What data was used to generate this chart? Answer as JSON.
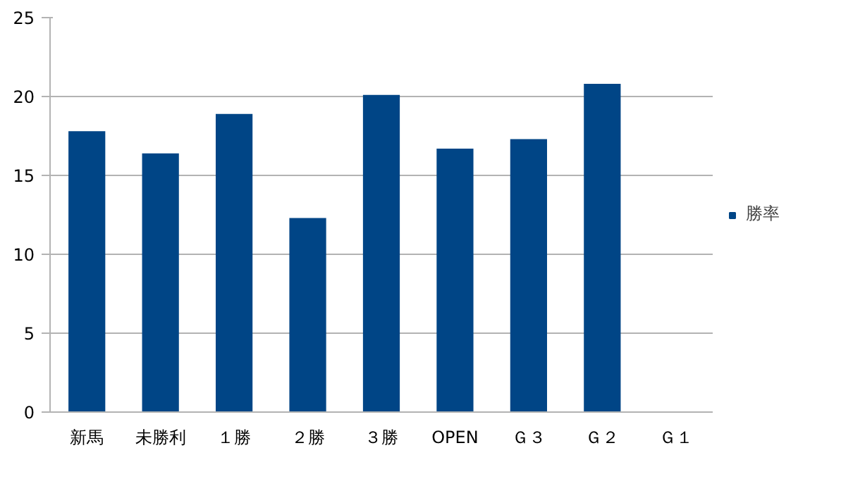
{
  "chart_data": {
    "type": "bar",
    "categories": [
      "新馬",
      "未勝利",
      "１勝",
      "２勝",
      "３勝",
      "OPEN",
      "Ｇ３",
      "Ｇ２",
      "Ｇ１"
    ],
    "series": [
      {
        "name": "勝率",
        "color": "#004586",
        "values": [
          17.8,
          16.4,
          18.9,
          12.3,
          20.1,
          16.7,
          17.3,
          20.8,
          null
        ]
      }
    ],
    "ylim": [
      0,
      25
    ],
    "yticks": [
      0,
      5,
      10,
      15,
      20,
      25
    ],
    "grid": "y",
    "legend": "right"
  }
}
